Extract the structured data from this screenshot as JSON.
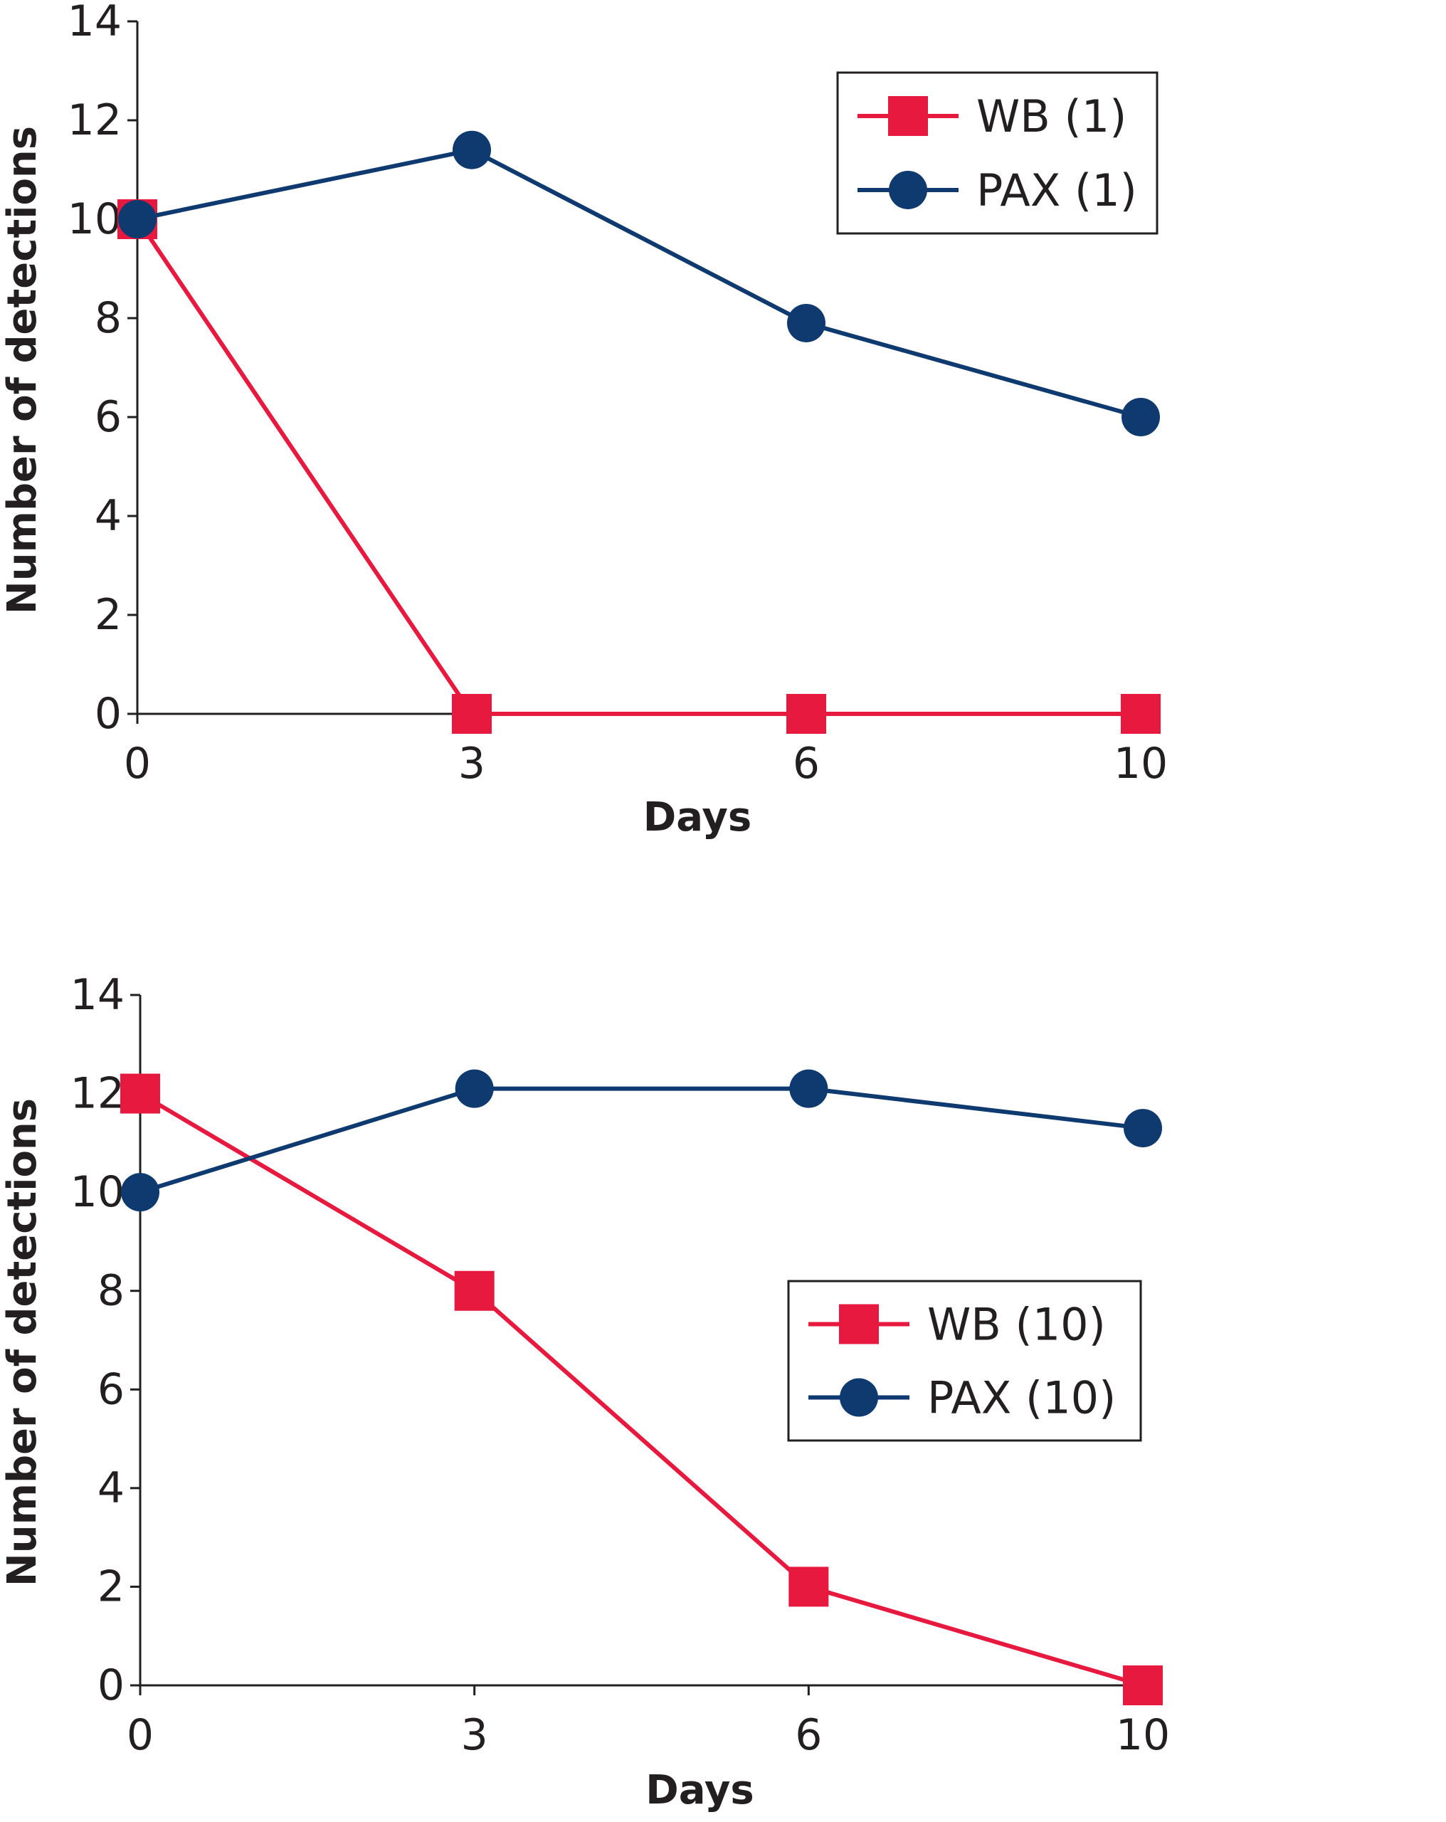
{
  "colors": {
    "wb": "#e8193f",
    "pax": "#0e3a70",
    "axis": "#231f20"
  },
  "chart_data": [
    {
      "type": "line",
      "xlabel": "Days",
      "ylabel": "Number of detections",
      "categories": [
        "0",
        "3",
        "6",
        "10"
      ],
      "ylim": [
        0,
        14
      ],
      "yticks": [
        "0",
        "2",
        "4",
        "6",
        "8",
        "10",
        "12",
        "14"
      ],
      "legend_placement": "top-right",
      "series": [
        {
          "name": "WB (1)",
          "key": "wb",
          "marker": "square",
          "values": [
            10,
            0,
            0,
            0
          ]
        },
        {
          "name": "PAX (1)",
          "key": "pax",
          "marker": "circle",
          "values": [
            10,
            11.4,
            7.9,
            6
          ]
        }
      ]
    },
    {
      "type": "line",
      "xlabel": "Days",
      "ylabel": "Number of detections",
      "categories": [
        "0",
        "3",
        "6",
        "10"
      ],
      "ylim": [
        0,
        14
      ],
      "yticks": [
        "0",
        "2",
        "4",
        "6",
        "8",
        "10",
        "12",
        "14"
      ],
      "legend_placement": "center-right",
      "series": [
        {
          "name": "WB (10)",
          "key": "wb",
          "marker": "square",
          "values": [
            12,
            8,
            2,
            0
          ]
        },
        {
          "name": "PAX (10)",
          "key": "pax",
          "marker": "circle",
          "values": [
            10,
            12.1,
            12.1,
            11.3
          ]
        }
      ]
    }
  ]
}
